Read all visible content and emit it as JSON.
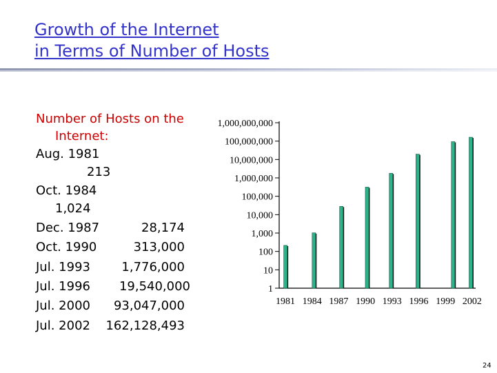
{
  "slide": {
    "title_line1": "Growth of the Internet",
    "title_line2": "in Terms of Number of Hosts",
    "page_number": "24"
  },
  "list": {
    "header_line1": "Number of Hosts on the",
    "header_line2": "Internet:",
    "rows": [
      {
        "date": "Aug. 1981",
        "value": "213"
      },
      {
        "date": "Oct. 1984",
        "value": "1,024"
      },
      {
        "date": "Dec. 1987",
        "value": "28,174"
      },
      {
        "date": "Oct. 1990",
        "value": "313,000"
      },
      {
        "date": "Jul.  1993",
        "value": "1,776,000"
      },
      {
        "date": "Jul.  1996",
        "value": "19,540,000"
      },
      {
        "date": "Jul. 2000",
        "value": "93,047,000"
      },
      {
        "date": "Jul. 2002",
        "value": "162,128,493"
      }
    ]
  },
  "colors": {
    "title": "#3333cc",
    "header": "#cc0000",
    "bar_fill": "#2db38a",
    "bar_shadow": "#1a1a1a"
  },
  "chart_data": {
    "type": "bar",
    "scale": "log",
    "ylim": [
      1,
      1000000000
    ],
    "y_ticks": [
      1,
      10,
      100,
      1000,
      10000,
      100000,
      1000000,
      10000000,
      100000000,
      1000000000
    ],
    "y_tick_labels": [
      "1",
      "10",
      "100",
      "1,000",
      "10,000",
      "100,000",
      "1,000,000",
      "10,000,000",
      "100,000,000",
      "1,000,000,000"
    ],
    "x_tick_labels": [
      "1981",
      "1984",
      "1987",
      "1990",
      "1993",
      "1996",
      "1999",
      "2002"
    ],
    "xlim": [
      1980.5,
      2002.5
    ],
    "x": [
      1981.6,
      1984.8,
      1987.9,
      1990.8,
      1993.5,
      1996.5,
      2000.5,
      2002.5
    ],
    "values": [
      213,
      1024,
      28174,
      313000,
      1776000,
      19540000,
      93047000,
      162128493
    ],
    "grid": false,
    "legend": false
  }
}
